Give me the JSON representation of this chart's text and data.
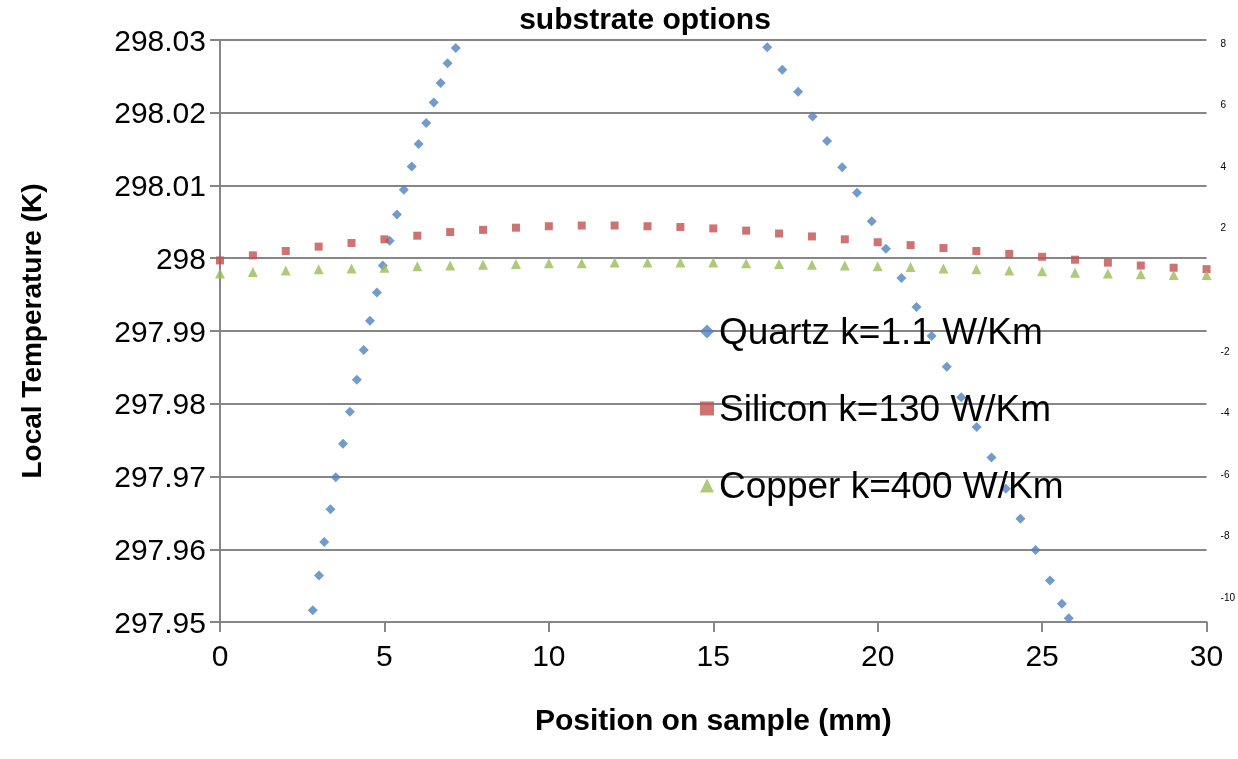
{
  "chart_data": {
    "type": "scatter",
    "title": "substrate options",
    "xlabel": "Position on sample (mm)",
    "ylabel": "Local Temperature (K)",
    "xlim": [
      0,
      30
    ],
    "xticks": [
      0,
      5,
      10,
      15,
      20,
      25,
      30
    ],
    "ylim": [
      297.95,
      298.03
    ],
    "yticks": [
      297.95,
      297.96,
      297.97,
      297.98,
      297.99,
      298,
      298.01,
      298.02,
      298.03
    ],
    "y2lim": [
      -10.8,
      8.1
    ],
    "y2ticks": [
      -10,
      -8,
      -6,
      -4,
      -2,
      2,
      4,
      6,
      8
    ],
    "grid": "y",
    "legend": "right",
    "series": [
      {
        "name": "Quartz k=1.1 W/Km",
        "color": "#4f81bd",
        "marker": "diamond",
        "x": [
          2.82,
          3.01,
          3.17,
          3.36,
          3.52,
          3.74,
          3.95,
          4.16,
          4.37,
          4.56,
          4.77,
          4.95,
          5.16,
          5.38,
          5.59,
          5.83,
          6.04,
          6.27,
          6.5,
          6.71,
          6.92,
          7.17,
          16.64,
          17.1,
          17.58,
          18.02,
          18.46,
          18.92,
          19.37,
          19.82,
          20.25,
          20.72,
          21.18,
          21.64,
          22.1,
          22.54,
          23.01,
          23.46,
          23.9,
          24.34,
          24.8,
          25.24,
          25.6,
          25.81
        ],
        "values": [
          297.9516,
          297.9564,
          297.961,
          297.9655,
          297.9699,
          297.9745,
          297.9789,
          297.9833,
          297.9874,
          297.9914,
          297.9953,
          297.999,
          298.0024,
          298.006,
          298.0094,
          298.0126,
          298.0157,
          298.0186,
          298.0214,
          298.0241,
          298.0268,
          298.0289,
          298.029,
          298.0259,
          298.0229,
          298.0195,
          298.0161,
          298.0125,
          298.009,
          298.0051,
          298.0013,
          297.9973,
          297.9933,
          297.9893,
          297.9851,
          297.9809,
          297.9768,
          297.9726,
          297.9683,
          297.9642,
          297.9599,
          297.9557,
          297.9525,
          297.9505
        ]
      },
      {
        "name": "Silicon k=130 W/Km",
        "color": "#c0504d",
        "marker": "square",
        "x": [
          0,
          1,
          2,
          3,
          4,
          5,
          6,
          7,
          8,
          9,
          10,
          11,
          12,
          13,
          14,
          15,
          16,
          17,
          18,
          19,
          20,
          21,
          22,
          23,
          24,
          25,
          26,
          27,
          28,
          29,
          30
        ],
        "values": [
          297.9997,
          298.0004,
          298.001,
          298.0016,
          298.0021,
          298.0026,
          298.0031,
          298.0036,
          298.0039,
          298.0042,
          298.0044,
          298.0045,
          298.0045,
          298.0044,
          298.0043,
          298.0041,
          298.0038,
          298.0034,
          298.003,
          298.0026,
          298.0022,
          298.0018,
          298.0014,
          298.001,
          298.0006,
          298.0002,
          297.9998,
          297.9994,
          297.999,
          297.9987,
          297.9985
        ]
      },
      {
        "name": "Copper k=400 W/Km",
        "color": "#9bbb59",
        "marker": "triangle",
        "x": [
          0,
          1,
          2,
          3,
          4,
          5,
          6,
          7,
          8,
          9,
          10,
          11,
          12,
          13,
          14,
          15,
          16,
          17,
          18,
          19,
          20,
          21,
          22,
          23,
          24,
          25,
          26,
          27,
          28,
          29,
          30
        ],
        "values": [
          297.9979,
          297.9981,
          297.9983,
          297.9985,
          297.9986,
          297.9987,
          297.9989,
          297.999,
          297.9991,
          297.9992,
          297.9993,
          297.9993,
          297.9994,
          297.9994,
          297.9994,
          297.9994,
          297.9993,
          297.9992,
          297.9991,
          297.999,
          297.9989,
          297.9988,
          297.9986,
          297.9985,
          297.9983,
          297.9982,
          297.998,
          297.9979,
          297.9978,
          297.9977,
          297.9977
        ]
      }
    ]
  }
}
